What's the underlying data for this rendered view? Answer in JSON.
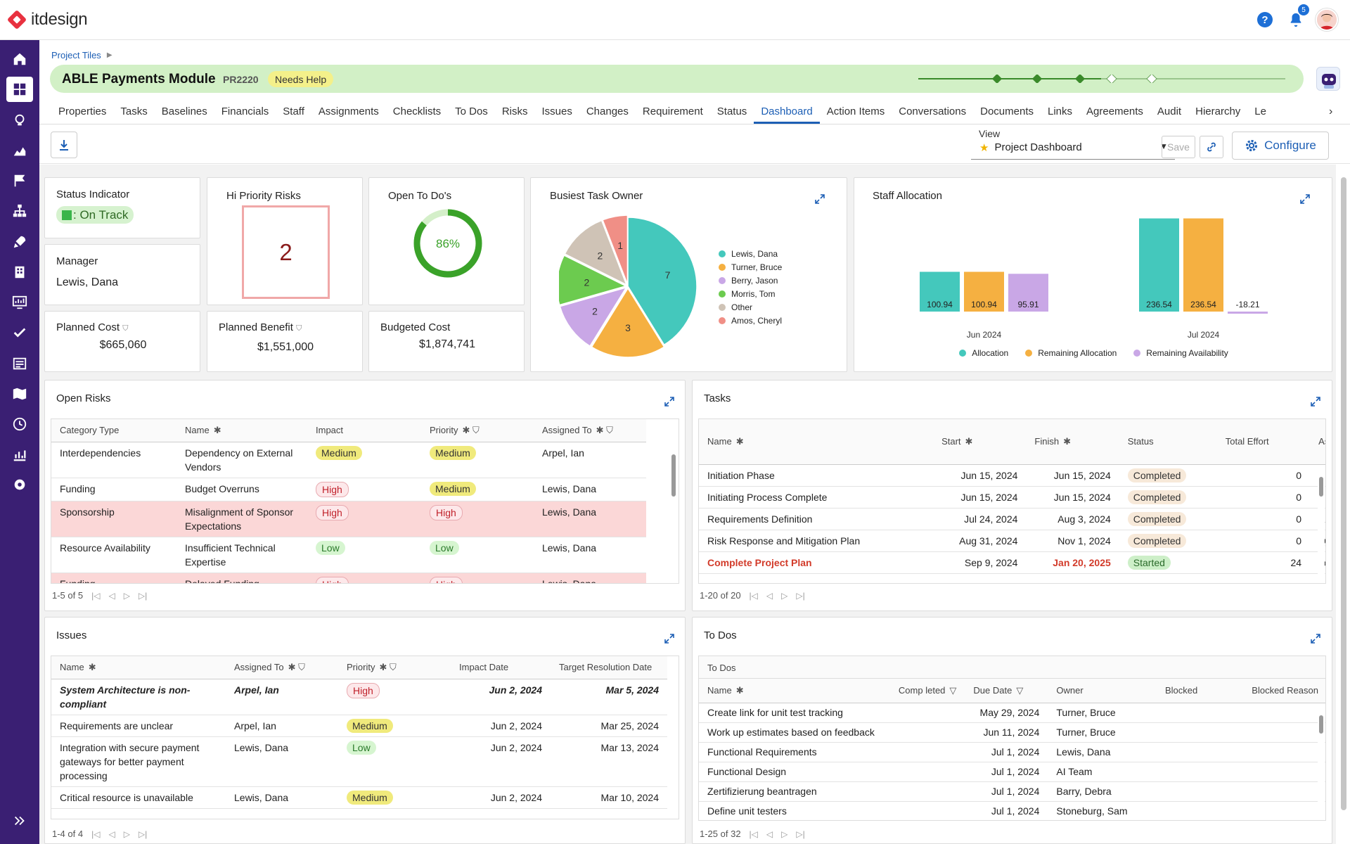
{
  "app": {
    "brand": "itdesign",
    "notifications": "5"
  },
  "breadcrumb": {
    "label": "Project Tiles"
  },
  "project": {
    "title": "ABLE Payments Module",
    "code": "PR2220",
    "badge": "Needs Help"
  },
  "tabs": [
    "Properties",
    "Tasks",
    "Baselines",
    "Financials",
    "Staff",
    "Assignments",
    "Checklists",
    "To Dos",
    "Risks",
    "Issues",
    "Changes",
    "Requirement",
    "Status",
    "Dashboard",
    "Action Items",
    "Conversations",
    "Documents",
    "Links",
    "Agreements",
    "Audit",
    "Hierarchy",
    "Le"
  ],
  "toolbar": {
    "view_label": "View",
    "view_value": "Project Dashboard",
    "save": "Save",
    "configure": "Configure"
  },
  "status_indicator": {
    "title": "Status Indicator",
    "value": ": On Track",
    "color": "#3ab54a"
  },
  "manager": {
    "title": "Manager",
    "value": "Lewis, Dana"
  },
  "planned_cost": {
    "title": "Planned Cost",
    "value": "$665,060"
  },
  "hi_priority": {
    "title": "Hi Priority Risks",
    "value": "2"
  },
  "planned_benefit": {
    "title": "Planned Benefit",
    "value": "$1,551,000"
  },
  "open_todos": {
    "title": "Open To Do's",
    "value": "86%",
    "percent": 86
  },
  "budgeted_cost": {
    "title": "Budgeted Cost",
    "value": "$1,874,741"
  },
  "busiest": {
    "title": "Busiest Task Owner"
  },
  "staff": {
    "title": "Staff Allocation"
  },
  "chart_data": [
    {
      "type": "pie",
      "title": "Busiest Task Owner",
      "categories": [
        "Lewis, Dana",
        "Turner, Bruce",
        "Berry, Jason",
        "Morris, Tom",
        "Other",
        "Amos, Cheryl"
      ],
      "values": [
        7,
        3,
        2,
        2,
        2,
        1
      ],
      "colors": [
        "#44c8bc",
        "#f5b041",
        "#c9a7e6",
        "#6ccb4f",
        "#cfc3b6",
        "#f08f86"
      ],
      "legend": "right"
    },
    {
      "type": "bar",
      "title": "Staff Allocation",
      "categories": [
        "Jun 2024",
        "Jul 2024"
      ],
      "series": [
        {
          "name": "Allocation",
          "values": [
            100.94,
            236.54
          ],
          "color": "#44c8bc"
        },
        {
          "name": "Remaining Allocation",
          "values": [
            100.94,
            236.54
          ],
          "color": "#f5b041"
        },
        {
          "name": "Remaining Availability",
          "values": [
            95.91,
            -18.21
          ],
          "color": "#c9a7e6"
        }
      ],
      "legend": "bottom"
    }
  ],
  "risks": {
    "title": "Open Risks",
    "columns": [
      "Category Type",
      "Name",
      "Impact",
      "Priority",
      "Assigned To"
    ],
    "rows": [
      {
        "category": "Interdependencies",
        "name": "Dependency on External Vendors",
        "impact": "Medium",
        "priority": "Medium",
        "assigned": "Arpel, Ian",
        "hl": false
      },
      {
        "category": "Funding",
        "name": "Budget Overruns",
        "impact": "High",
        "priority": "Medium",
        "assigned": "Lewis, Dana",
        "hl": false
      },
      {
        "category": "Sponsorship",
        "name": "Misalignment of Sponsor Expectations",
        "impact": "High",
        "priority": "High",
        "assigned": "Lewis, Dana",
        "hl": true
      },
      {
        "category": "Resource Availability",
        "name": "Insufficient Technical Expertise",
        "impact": "Low",
        "priority": "Low",
        "assigned": "Lewis, Dana",
        "hl": false
      },
      {
        "category": "Funding",
        "name": "Delayed Funding",
        "impact": "High",
        "priority": "High",
        "assigned": "Lewis, Dana",
        "hl": true
      }
    ],
    "pager": "1-5 of 5"
  },
  "tasks": {
    "title": "Tasks",
    "columns": [
      "Name",
      "Start",
      "Finish",
      "Status",
      "Total Effort",
      "Assigned Resou"
    ],
    "rows": [
      {
        "name": "Initiation Phase",
        "start": "Jun 15, 2024",
        "finish": "Jun 15, 2024",
        "status": "Completed",
        "effort": "0",
        "assigned": "",
        "late": false
      },
      {
        "name": "Initiating Process Complete",
        "start": "Jun 15, 2024",
        "finish": "Jun 15, 2024",
        "status": "Completed",
        "effort": "0",
        "assigned": "",
        "late": false
      },
      {
        "name": "Requirements Definition",
        "start": "Jul 24, 2024",
        "finish": "Aug 3, 2024",
        "status": "Completed",
        "effort": "0",
        "assigned": "Arpel, Ian; B",
        "late": false
      },
      {
        "name": "Risk Response and Mitigation Plan",
        "start": "Aug 31, 2024",
        "finish": "Nov 1, 2024",
        "status": "Completed",
        "effort": "0",
        "assigned": "Quinn, Ranc",
        "late": false
      },
      {
        "name": "Complete Project Plan",
        "start": "Sep 9, 2024",
        "finish": "Jan 20, 2025",
        "status": "Started",
        "effort": "24",
        "assigned": "Lewis, Dana",
        "late": true
      }
    ],
    "pager": "1-20 of 20"
  },
  "issues": {
    "title": "Issues",
    "columns": [
      "Name",
      "Assigned To",
      "Priority",
      "Impact Date",
      "Target Resolution Date"
    ],
    "rows": [
      {
        "name": "System Architecture is non-compliant",
        "assigned": "Arpel, Ian",
        "priority": "High",
        "impact": "Jun 2, 2024",
        "target": "Mar 5, 2024",
        "bold": true
      },
      {
        "name": "Requirements are unclear",
        "assigned": "Arpel, Ian",
        "priority": "Medium",
        "impact": "Jun 2, 2024",
        "target": "Mar 25, 2024",
        "bold": false
      },
      {
        "name": "Integration with secure payment gateways for better payment processing",
        "assigned": "Lewis, Dana",
        "priority": "Low",
        "impact": "Jun 2, 2024",
        "target": "Mar 13, 2024",
        "bold": false
      },
      {
        "name": "Critical resource is unavailable",
        "assigned": "Lewis, Dana",
        "priority": "Medium",
        "impact": "Jun 2, 2024",
        "target": "Mar 10, 2024",
        "bold": false
      }
    ],
    "pager": "1-4 of 4"
  },
  "todos": {
    "title": "To Dos",
    "group": "To Dos",
    "columns": [
      "Name",
      "Comp leted",
      "Due Date",
      "Owner",
      "Blocked",
      "Blocked Reason"
    ],
    "rows": [
      {
        "name": "Create link for unit test tracking",
        "due": "May 29, 2024",
        "owner": "Turner, Bruce"
      },
      {
        "name": "Work up estimates based on feedback",
        "due": "Jun 11, 2024",
        "owner": "Turner, Bruce"
      },
      {
        "name": "Functional Requirements",
        "due": "Jul 1, 2024",
        "owner": "Lewis, Dana"
      },
      {
        "name": "Functional Design",
        "due": "Jul 1, 2024",
        "owner": "AI Team"
      },
      {
        "name": "Zertifizierung beantragen",
        "due": "Jul 1, 2024",
        "owner": "Barry, Debra"
      },
      {
        "name": "Define unit testers",
        "due": "Jul 1, 2024",
        "owner": "Stoneburg, Sam"
      }
    ],
    "pager": "1-25 of 32"
  }
}
